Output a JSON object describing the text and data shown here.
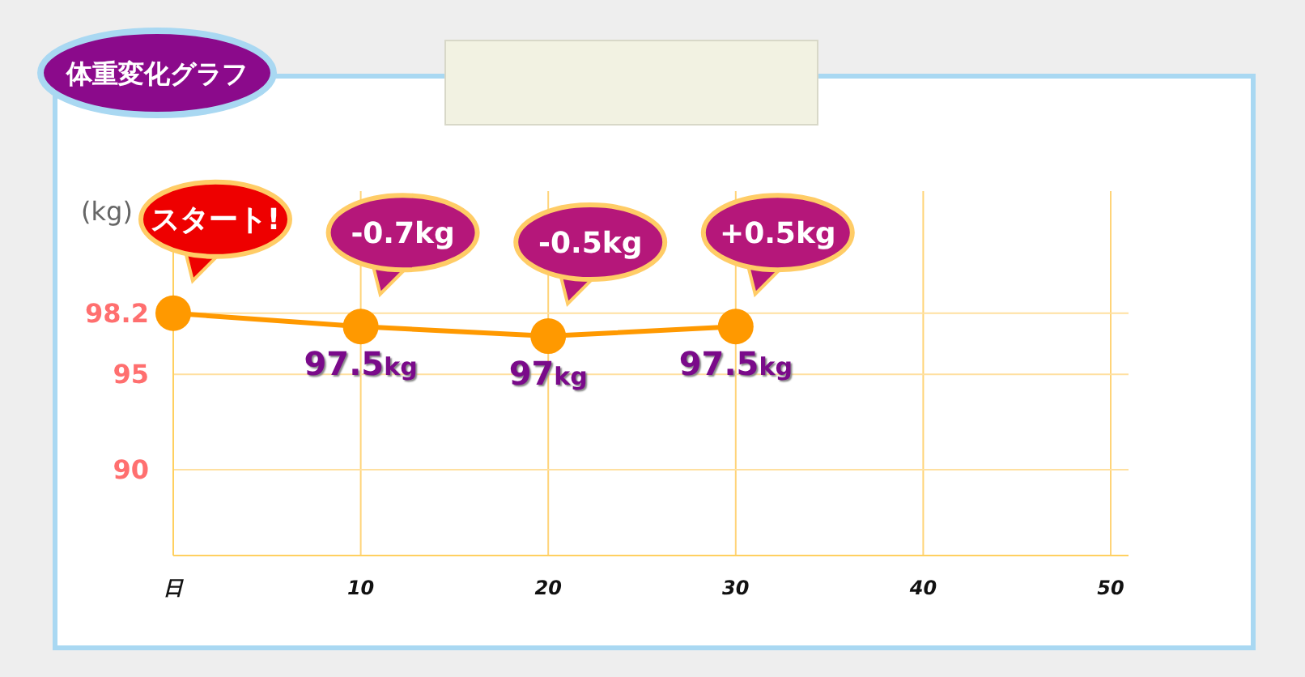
{
  "chart_data": {
    "type": "line",
    "title": "体重変化グラフ",
    "ylabel": "(kg)",
    "x": [
      0,
      10,
      20,
      30
    ],
    "series": [
      {
        "color": "#ff9900",
        "values": [
          98.2,
          97.5,
          97,
          97.5
        ],
        "value_labels": [
          null,
          "97.5kg",
          "97kg",
          "97.5kg"
        ]
      }
    ],
    "xlim": [
      0,
      50
    ],
    "xticks": [
      {
        "value": 0,
        "label": "日"
      },
      10,
      20,
      30,
      40,
      50
    ],
    "ylim": [
      85.5,
      104.6
    ],
    "yticks": [
      90,
      95,
      98.2
    ],
    "grid": true,
    "marker": "circle",
    "line_style": "solid",
    "annotations": [
      {
        "text": "スタート!",
        "x": 0,
        "y": 98.2
      },
      {
        "text": "-0.7kg",
        "x": 10,
        "y": 97.5
      },
      {
        "text": "-0.5kg",
        "x": 20,
        "y": 97
      },
      {
        "text": "+0.5kg",
        "x": 30,
        "y": 97.5
      }
    ]
  }
}
